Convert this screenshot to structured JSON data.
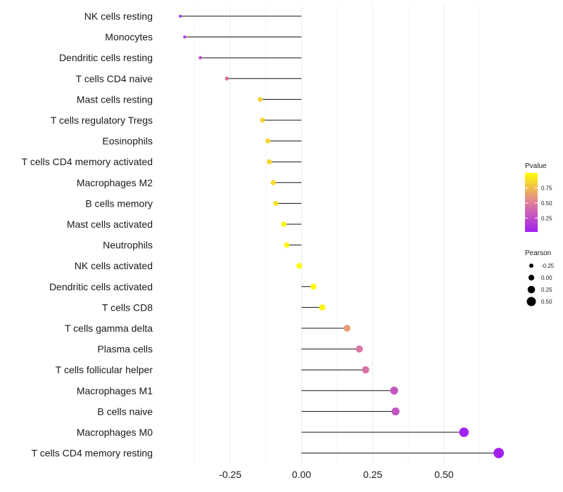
{
  "chart_data": {
    "type": "lollipop",
    "categories": [
      "NK cells resting",
      "Monocytes",
      "Dendritic cells resting",
      "T cells CD4 naive",
      "Mast cells resting",
      "T cells regulatory  Tregs",
      "Eosinophils",
      "T cells CD4 memory activated",
      "Macrophages M2",
      "B cells memory",
      "Mast cells activated",
      "Neutrophils",
      "NK cells activated",
      "Dendritic cells activated",
      "T cells CD8",
      "T cells gamma delta",
      "Plasma cells",
      "T cells follicular helper",
      "Macrophages M1",
      "B cells naive",
      "Macrophages M0",
      "T cells CD4 memory resting"
    ],
    "pearson": [
      -0.425,
      -0.41,
      -0.355,
      -0.262,
      -0.145,
      -0.137,
      -0.118,
      -0.113,
      -0.099,
      -0.09,
      -0.062,
      -0.052,
      -0.008,
      0.042,
      0.073,
      0.16,
      0.203,
      0.225,
      0.325,
      0.33,
      0.57,
      0.692
    ],
    "pvalue": [
      0.1,
      0.15,
      0.25,
      0.45,
      0.82,
      0.83,
      0.84,
      0.84,
      0.86,
      0.88,
      0.95,
      0.96,
      0.99,
      0.98,
      0.96,
      0.62,
      0.45,
      0.42,
      0.28,
      0.27,
      0.02,
      0.001
    ],
    "x_ticks": [
      -0.25,
      0.0,
      0.25,
      0.5
    ],
    "x_tick_labels": [
      "-0.25",
      "0.00",
      "0.25",
      "0.50"
    ],
    "xlim": [
      -0.49,
      0.72
    ],
    "xlabel": "",
    "ylabel": "",
    "grid": true,
    "color_scale": {
      "low": "#a020f0",
      "mid": "#e0809a",
      "high": "#ffff00",
      "domain": [
        0,
        1
      ]
    },
    "legend": {
      "color_title": "Pvalue",
      "color_breaks": [
        0.75,
        0.5,
        0.25
      ],
      "color_labels": [
        "0.75",
        "0.50",
        "0.25"
      ],
      "size_title": "Pearson",
      "size_breaks": [
        -0.25,
        0.0,
        0.25,
        0.5
      ],
      "size_labels": [
        "-0.25",
        "0.00",
        "0.25",
        "0.50"
      ],
      "position": "right"
    }
  }
}
